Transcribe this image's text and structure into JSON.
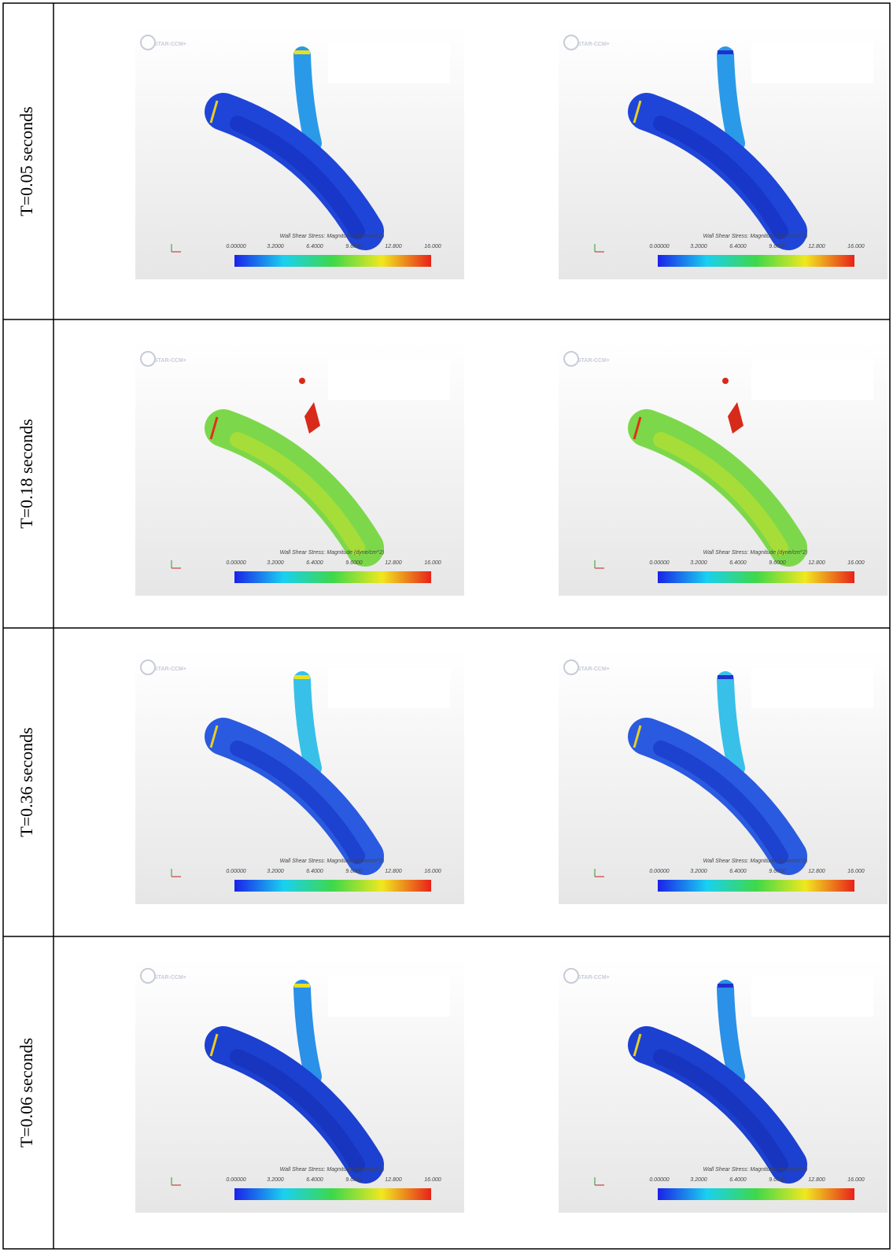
{
  "table": {
    "rows": [
      {
        "label": "T=0.05 seconds"
      },
      {
        "label": "T=0.18 seconds"
      },
      {
        "label": "T=0.36 seconds"
      },
      {
        "label": "T=0.06 seconds"
      }
    ]
  },
  "panel": {
    "logo": "STAR-CCM+",
    "colorbar": {
      "title": "Wall Shear Stress: Magnitude (dyne/cm^2)",
      "ticks": [
        "0.00000",
        "3.2000",
        "6.4000",
        "9.6000",
        "12.800",
        "16.000"
      ]
    }
  }
}
